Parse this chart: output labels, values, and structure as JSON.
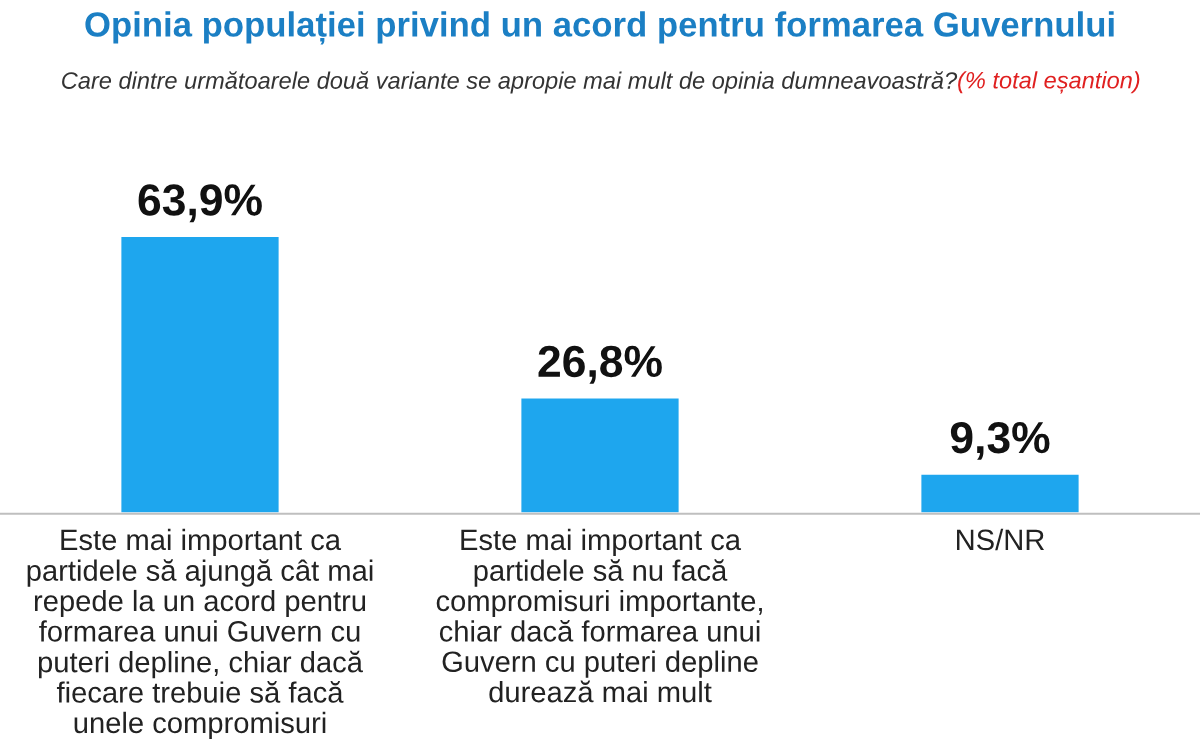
{
  "chart_data": {
    "type": "bar",
    "title": "Opinia populației privind un acord pentru formarea Guvernului",
    "subtitle": "Care dintre următoarele două variante se apropie mai mult de opinia dumneavoastră?",
    "annotations": [
      "(% total eșantion)"
    ],
    "categories": [
      "Este mai important ca partidele să ajungă cât mai repede la un acord pentru formarea unui Guvern cu puteri depline, chiar dacă fiecare trebuie să facă unele compromisuri",
      "Este mai important ca partidele să nu facă compromisuri importante, chiar dacă formarea unui Guvern cu puteri depline durează mai mult",
      "NS/NR"
    ],
    "values": [
      63.9,
      26.8,
      9.3
    ],
    "value_labels": [
      "63,9%",
      "26,8%",
      "9,3%"
    ],
    "color": "#1ea6ee",
    "grid": false,
    "legend": false
  }
}
